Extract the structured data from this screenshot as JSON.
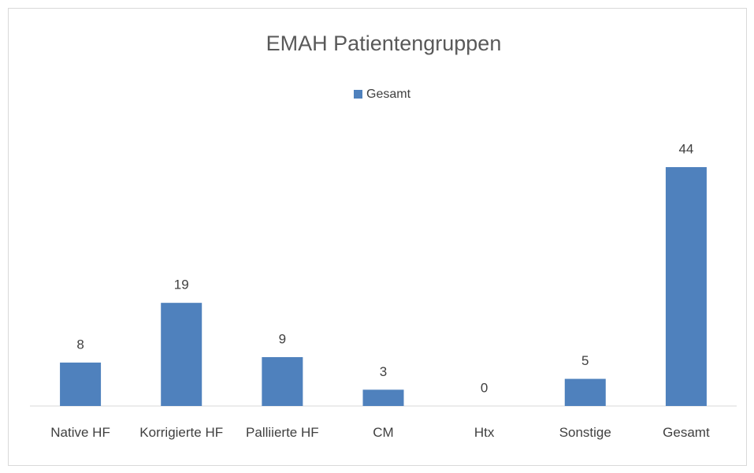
{
  "chart_data": {
    "type": "bar",
    "title": "EMAH Patientengruppen",
    "categories": [
      "Native HF",
      "Korrigierte HF",
      "Palliierte HF",
      "CM",
      "Htx",
      "Sonstige",
      "Gesamt"
    ],
    "series": [
      {
        "name": "Gesamt",
        "color": "#4f81bd",
        "values": [
          8,
          19,
          9,
          3,
          0,
          5,
          44
        ]
      }
    ],
    "legend": "top"
  }
}
